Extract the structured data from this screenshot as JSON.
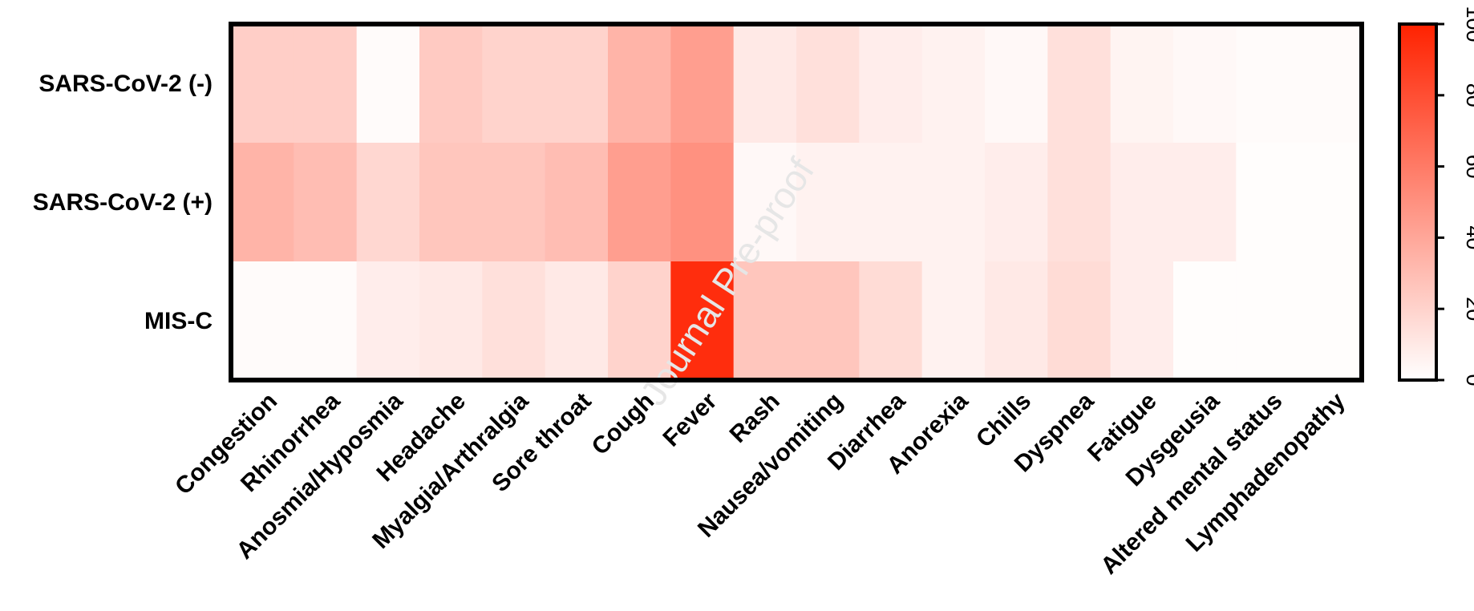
{
  "watermark": "Journal Pre-proof",
  "chart_data": {
    "type": "heatmap",
    "rows": [
      "SARS-CoV-2 (-)",
      "SARS-CoV-2 (+)",
      "MIS-C"
    ],
    "columns": [
      "Congestion",
      "Rhinorrhea",
      "Anosmia/Hyposmia",
      "Headache",
      "Myalgia/Arthralgia",
      "Sore throat",
      "Cough",
      "Fever",
      "Rash",
      "Nausea/vomiting",
      "Diarrhea",
      "Anorexia",
      "Chills",
      "Dyspnea",
      "Fatigue",
      "Dysgeusia",
      "Altered mental status",
      "Lymphadenopathy"
    ],
    "values": [
      [
        22,
        22,
        2,
        24,
        20,
        20,
        34,
        44,
        10,
        14,
        8,
        6,
        3,
        14,
        5,
        3,
        2,
        2
      ],
      [
        34,
        30,
        18,
        26,
        26,
        30,
        44,
        50,
        3,
        6,
        6,
        6,
        8,
        14,
        8,
        8,
        1,
        1
      ],
      [
        2,
        2,
        8,
        10,
        14,
        10,
        20,
        95,
        26,
        26,
        16,
        6,
        10,
        16,
        8,
        1,
        1,
        1
      ]
    ],
    "colorbar": {
      "min": 0,
      "max": 100,
      "ticks": [
        0,
        20,
        40,
        60,
        80,
        100
      ],
      "color_low": "#ffffff",
      "color_high": "#ff2200"
    }
  }
}
